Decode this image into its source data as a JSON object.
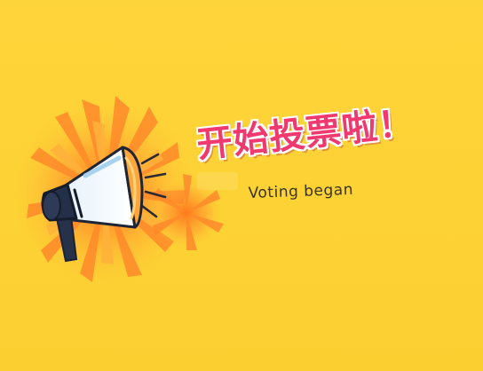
{
  "banner": {
    "headline": "开始投票啦！",
    "subline": "Voting began",
    "icon": "megaphone-icon",
    "colors": {
      "background": "#fdd33a",
      "headline": "#f0396e",
      "burst": "#ff8a2a"
    }
  }
}
